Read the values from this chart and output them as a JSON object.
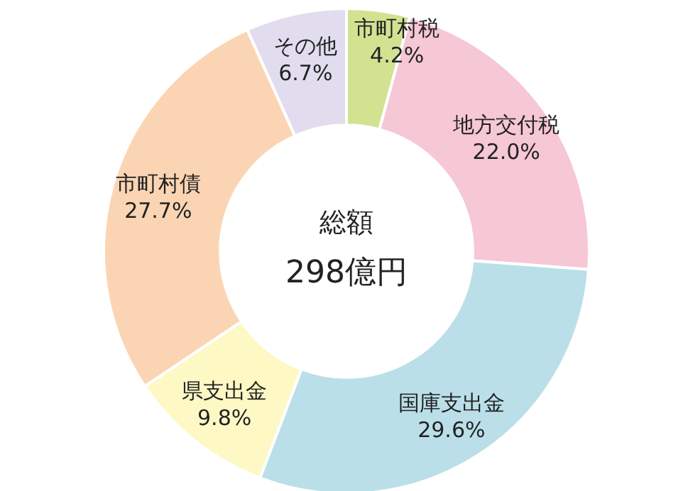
{
  "chart_data": {
    "type": "donut",
    "categories": [
      "市町村税",
      "地方交付税",
      "国庫支出金",
      "県支出金",
      "市町村債",
      "その他"
    ],
    "values": [
      4.2,
      22.0,
      29.6,
      9.8,
      27.7,
      6.7
    ],
    "value_labels": [
      "4.2%",
      "22.0%",
      "29.6%",
      "9.8%",
      "27.7%",
      "6.7%"
    ],
    "colors": [
      "#d1e291",
      "#f6c7d5",
      "#badfe9",
      "#fdf8c4",
      "#fbd5b3",
      "#e1ddef"
    ],
    "annotations": [
      "総額",
      "298億円"
    ]
  }
}
